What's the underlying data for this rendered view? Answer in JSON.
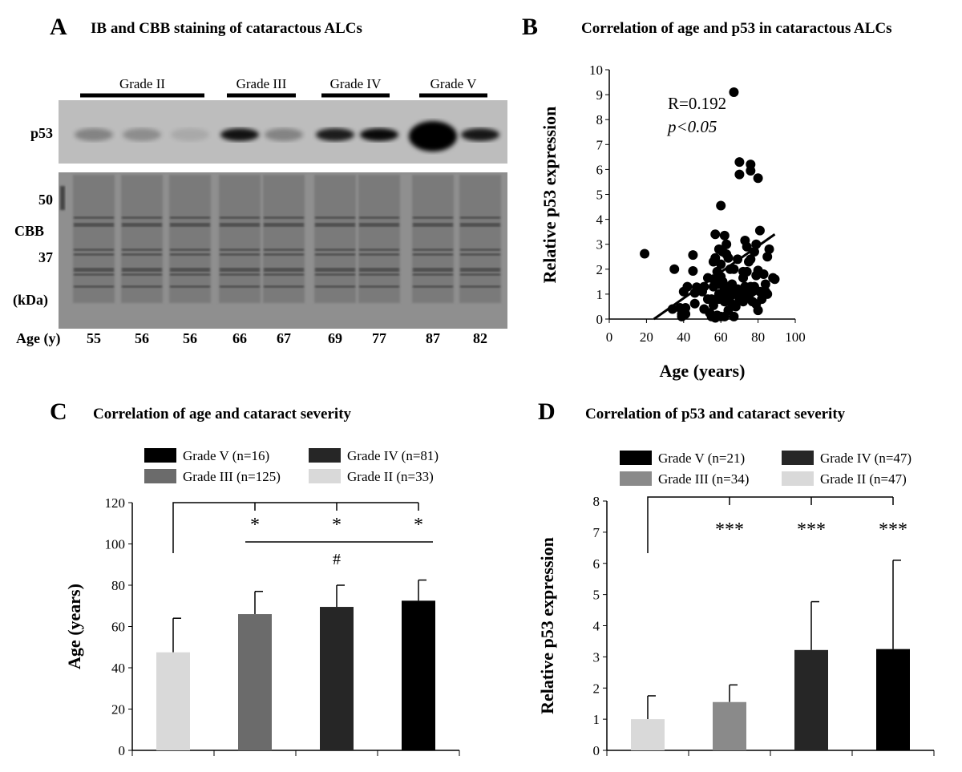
{
  "panel_a": {
    "letter": "A",
    "title": "IB and CBB staining of cataractous ALCs",
    "grades": [
      "Grade II",
      "Grade III",
      "Grade IV",
      "Grade V"
    ],
    "row_labels": {
      "p53": "p53",
      "m50": "50",
      "cbb": "CBB",
      "m37": "37",
      "unit": "(kDa)",
      "age": "Age (y)"
    },
    "ages": [
      "55",
      "56",
      "56",
      "66",
      "67",
      "69",
      "77",
      "87",
      "82"
    ],
    "lane_grades": [
      "Grade II",
      "Grade II",
      "Grade II",
      "Grade III",
      "Grade III",
      "Grade IV",
      "Grade IV",
      "Grade V",
      "Grade V"
    ]
  },
  "chart_data": [
    {
      "panel": "B",
      "type": "scatter",
      "title": "Correlation of age and p53 in cataractous ALCs",
      "xlabel": "Age (years)",
      "ylabel": "Relative p53 expression",
      "xlim": [
        0,
        100
      ],
      "ylim": [
        0,
        10
      ],
      "xticks": [
        0,
        20,
        40,
        60,
        80,
        100
      ],
      "yticks": [
        0,
        1,
        2,
        3,
        4,
        5,
        6,
        7,
        8,
        9,
        10
      ],
      "annotations": [
        "R=0.192",
        "p<0.05"
      ],
      "trendline": [
        [
          24,
          0
        ],
        [
          89,
          3.4
        ]
      ],
      "points": [
        [
          19,
          2.62
        ],
        [
          34,
          0.4
        ],
        [
          35,
          2.0
        ],
        [
          38,
          0.45
        ],
        [
          39,
          0.2
        ],
        [
          39,
          0.1
        ],
        [
          40,
          1.1
        ],
        [
          40,
          0.35
        ],
        [
          41,
          0.45
        ],
        [
          41,
          0.2
        ],
        [
          42,
          1.3
        ],
        [
          45,
          2.57
        ],
        [
          45,
          1.93
        ],
        [
          46,
          1.05
        ],
        [
          46,
          0.62
        ],
        [
          47,
          1.28
        ],
        [
          49,
          1.2
        ],
        [
          50,
          1.1
        ],
        [
          51,
          1.3
        ],
        [
          51,
          0.4
        ],
        [
          53,
          1.65
        ],
        [
          53,
          0.8
        ],
        [
          54,
          0.25
        ],
        [
          55,
          0.8
        ],
        [
          55,
          0.1
        ],
        [
          56,
          2.3
        ],
        [
          56,
          1.6
        ],
        [
          56,
          1.3
        ],
        [
          56,
          0.55
        ],
        [
          57,
          3.4
        ],
        [
          57,
          2.45
        ],
        [
          57,
          0.05
        ],
        [
          58,
          1.9
        ],
        [
          58,
          0.15
        ],
        [
          59,
          2.8
        ],
        [
          59,
          1.4
        ],
        [
          59,
          1.0
        ],
        [
          59,
          0.8
        ],
        [
          60,
          4.55
        ],
        [
          60,
          2.2
        ],
        [
          60,
          1.7
        ],
        [
          60,
          0.1
        ],
        [
          61,
          2.7
        ],
        [
          61,
          1.5
        ],
        [
          61,
          1.0
        ],
        [
          62,
          3.35
        ],
        [
          62,
          1.2
        ],
        [
          62,
          0.7
        ],
        [
          62,
          0.1
        ],
        [
          63,
          3.0
        ],
        [
          63,
          2.6
        ],
        [
          63,
          1.0
        ],
        [
          64,
          2.45
        ],
        [
          64,
          1.3
        ],
        [
          64,
          0.35
        ],
        [
          65,
          2.0
        ],
        [
          65,
          0.9
        ],
        [
          66,
          1.4
        ],
        [
          66,
          0.6
        ],
        [
          67,
          9.1
        ],
        [
          67,
          2.0
        ],
        [
          67,
          1.1
        ],
        [
          67,
          0.1
        ],
        [
          68,
          1.0
        ],
        [
          68,
          0.5
        ],
        [
          69,
          2.4
        ],
        [
          69,
          1.2
        ],
        [
          70,
          6.3
        ],
        [
          70,
          5.8
        ],
        [
          70,
          0.8
        ],
        [
          71,
          1.0
        ],
        [
          72,
          1.9
        ],
        [
          72,
          1.65
        ],
        [
          72,
          0.7
        ],
        [
          73,
          3.15
        ],
        [
          73,
          1.3
        ],
        [
          74,
          2.9
        ],
        [
          74,
          1.9
        ],
        [
          74,
          1.0
        ],
        [
          75,
          2.3
        ],
        [
          75,
          0.9
        ],
        [
          76,
          6.2
        ],
        [
          76,
          5.95
        ],
        [
          76,
          2.4
        ],
        [
          76,
          1.3
        ],
        [
          77,
          1.1
        ],
        [
          77,
          0.7
        ],
        [
          78,
          2.7
        ],
        [
          78,
          1.3
        ],
        [
          79,
          3.0
        ],
        [
          79,
          1.75
        ],
        [
          79,
          0.6
        ],
        [
          80,
          5.65
        ],
        [
          80,
          1.95
        ],
        [
          80,
          0.35
        ],
        [
          81,
          3.55
        ],
        [
          81,
          1.1
        ],
        [
          82,
          0.8
        ],
        [
          83,
          1.8
        ],
        [
          84,
          1.4
        ],
        [
          84,
          1.1
        ],
        [
          85,
          1.0
        ],
        [
          85,
          2.5
        ],
        [
          86,
          2.8
        ],
        [
          88,
          1.65
        ],
        [
          89,
          1.6
        ]
      ]
    },
    {
      "panel": "C",
      "type": "bar",
      "title": "Correlation of age and cataract severity",
      "ylabel": "Age (years)",
      "ylim": [
        0,
        120
      ],
      "yticks": [
        0,
        20,
        40,
        60,
        80,
        100,
        120
      ],
      "categories": [
        "Grade II (n=33)",
        "Grade III (n=125)",
        "Grade IV (n=81)",
        "Grade V (n=16)"
      ],
      "legend_order": [
        3,
        2,
        1,
        0
      ],
      "values": [
        47.5,
        66,
        69.5,
        72.5
      ],
      "errors": [
        16.5,
        11,
        10.5,
        10
      ],
      "colors": [
        "#d9d9d9",
        "#6b6b6b",
        "#262626",
        "#000000"
      ],
      "significance": {
        "vs_grade_ii": [
          "*",
          "*",
          "*"
        ],
        "group_mark": "#"
      }
    },
    {
      "panel": "D",
      "type": "bar",
      "title": "Correlation of p53 and cataract severity",
      "ylabel": "Relative p53 expression",
      "ylim": [
        0,
        8
      ],
      "yticks": [
        0,
        1,
        2,
        3,
        4,
        5,
        6,
        7,
        8
      ],
      "categories": [
        "Grade II (n=47)",
        "Grade III (n=34)",
        "Grade IV (n=47)",
        "Grade V (n=21)"
      ],
      "legend_order": [
        3,
        2,
        1,
        0
      ],
      "values": [
        1.0,
        1.55,
        3.22,
        3.25
      ],
      "errors": [
        0.75,
        0.55,
        1.55,
        2.85
      ],
      "colors": [
        "#d9d9d9",
        "#8a8a8a",
        "#262626",
        "#000000"
      ],
      "significance": {
        "vs_grade_ii": [
          "***",
          "***",
          "***"
        ]
      }
    }
  ],
  "panel_letters": {
    "b": "B",
    "c": "C",
    "d": "D"
  }
}
